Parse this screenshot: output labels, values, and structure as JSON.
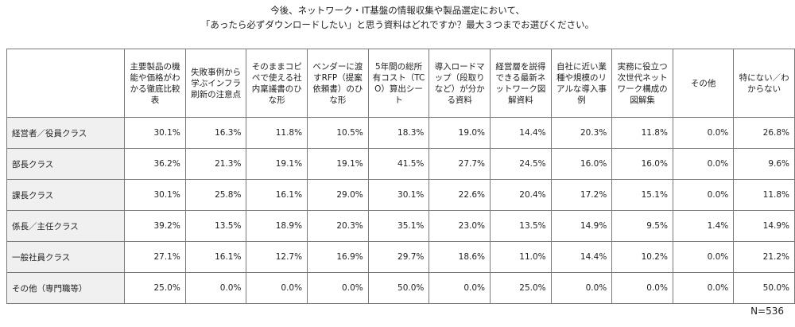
{
  "chart_data": {
    "type": "table",
    "title_lines": [
      "今後、ネットワーク・IT基盤の情報収集や製品選定において、",
      "「あったら必ずダウンロードしたい」と思う資料はどれですか？最大３つまでお選びください。"
    ],
    "columns": [
      "主要製品の機能や価格がわかる徹底比較表",
      "失敗事例から学ぶインフラ刷新の注意点",
      "そのままコピペで使える社内稟議書のひな形",
      "ベンダーに渡すRFP（提案依頼書）のひな形",
      "5年間の総所有コスト（TCO）算出シート",
      "導入ロードマップ（段取りなど）が分かる資料",
      "経営層を説得できる最新ネットワーク図解資料",
      "自社に近い業種や規模のリアルな導入事例",
      "実務に役立つ次世代ネットワーク構成の図解集",
      "その他",
      "特にない／わからない"
    ],
    "rows": [
      {
        "label": "経営者／役員クラス",
        "values": [
          "30.1%",
          "16.3%",
          "11.8%",
          "10.5%",
          "18.3%",
          "19.0%",
          "14.4%",
          "20.3%",
          "11.8%",
          "0.0%",
          "26.8%"
        ]
      },
      {
        "label": "部長クラス",
        "values": [
          "36.2%",
          "21.3%",
          "19.1%",
          "19.1%",
          "41.5%",
          "27.7%",
          "24.5%",
          "16.0%",
          "16.0%",
          "0.0%",
          "9.6%"
        ]
      },
      {
        "label": "課長クラス",
        "values": [
          "30.1%",
          "25.8%",
          "16.1%",
          "29.0%",
          "30.1%",
          "22.6%",
          "20.4%",
          "17.2%",
          "15.1%",
          "0.0%",
          "11.8%"
        ]
      },
      {
        "label": "係長／主任クラス",
        "values": [
          "39.2%",
          "13.5%",
          "18.9%",
          "20.3%",
          "35.1%",
          "23.0%",
          "13.5%",
          "14.9%",
          "9.5%",
          "1.4%",
          "14.9%"
        ]
      },
      {
        "label": "一般社員クラス",
        "values": [
          "27.1%",
          "16.1%",
          "12.7%",
          "16.9%",
          "29.7%",
          "18.6%",
          "11.0%",
          "14.4%",
          "10.2%",
          "0.0%",
          "21.2%"
        ]
      },
      {
        "label": "その他（専門職等）",
        "values": [
          "25.0%",
          "0.0%",
          "0.0%",
          "0.0%",
          "50.0%",
          "0.0%",
          "25.0%",
          "0.0%",
          "0.0%",
          "0.0%",
          "50.0%"
        ]
      }
    ],
    "note": "N=536"
  }
}
